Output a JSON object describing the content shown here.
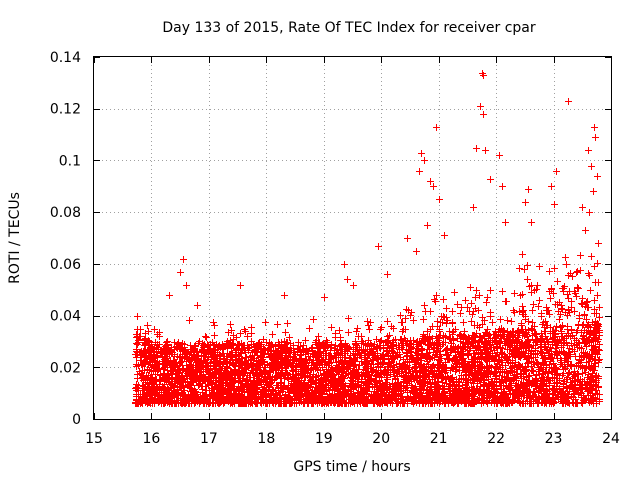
{
  "chart_data": {
    "type": "scatter",
    "title": "Day 133 of 2015, Rate Of TEC Index for receiver cpar",
    "xlabel": "GPS time / hours",
    "ylabel": "ROTI / TECUs",
    "xlim": [
      15,
      24
    ],
    "ylim": [
      0,
      0.14
    ],
    "xticks": [
      "15",
      "16",
      "17",
      "18",
      "19",
      "20",
      "21",
      "22",
      "23",
      "24"
    ],
    "yticks": [
      "0",
      "0.02",
      "0.04",
      "0.06",
      "0.08",
      "0.1",
      "0.12",
      "0.14"
    ],
    "grid": true,
    "marker": "+",
    "color": "#ff0000",
    "x_start": 15.72,
    "x_end": 23.8,
    "baseline_band": [
      0.006,
      0.03
    ],
    "point_count": 5200,
    "notable_points": [
      {
        "x": 15.75,
        "y": 0.04
      },
      {
        "x": 15.8,
        "y": 0.035
      },
      {
        "x": 16.3,
        "y": 0.048
      },
      {
        "x": 16.55,
        "y": 0.062
      },
      {
        "x": 16.5,
        "y": 0.057
      },
      {
        "x": 16.6,
        "y": 0.052
      },
      {
        "x": 16.8,
        "y": 0.044
      },
      {
        "x": 17.55,
        "y": 0.052
      },
      {
        "x": 18.3,
        "y": 0.048
      },
      {
        "x": 19.0,
        "y": 0.047
      },
      {
        "x": 19.35,
        "y": 0.06
      },
      {
        "x": 19.4,
        "y": 0.054
      },
      {
        "x": 19.5,
        "y": 0.052
      },
      {
        "x": 19.95,
        "y": 0.067
      },
      {
        "x": 20.1,
        "y": 0.056
      },
      {
        "x": 20.45,
        "y": 0.07
      },
      {
        "x": 20.6,
        "y": 0.065
      },
      {
        "x": 20.7,
        "y": 0.103
      },
      {
        "x": 20.75,
        "y": 0.1
      },
      {
        "x": 20.65,
        "y": 0.096
      },
      {
        "x": 20.85,
        "y": 0.092
      },
      {
        "x": 20.9,
        "y": 0.09
      },
      {
        "x": 20.95,
        "y": 0.113
      },
      {
        "x": 21.0,
        "y": 0.085
      },
      {
        "x": 20.8,
        "y": 0.075
      },
      {
        "x": 21.1,
        "y": 0.071
      },
      {
        "x": 21.65,
        "y": 0.105
      },
      {
        "x": 21.75,
        "y": 0.134
      },
      {
        "x": 21.78,
        "y": 0.133
      },
      {
        "x": 21.72,
        "y": 0.121
      },
      {
        "x": 21.78,
        "y": 0.118
      },
      {
        "x": 21.8,
        "y": 0.104
      },
      {
        "x": 21.9,
        "y": 0.093
      },
      {
        "x": 22.05,
        "y": 0.102
      },
      {
        "x": 22.1,
        "y": 0.09
      },
      {
        "x": 21.6,
        "y": 0.082
      },
      {
        "x": 22.15,
        "y": 0.076
      },
      {
        "x": 22.5,
        "y": 0.084
      },
      {
        "x": 22.55,
        "y": 0.089
      },
      {
        "x": 22.6,
        "y": 0.076
      },
      {
        "x": 22.45,
        "y": 0.064
      },
      {
        "x": 22.95,
        "y": 0.09
      },
      {
        "x": 23.05,
        "y": 0.096
      },
      {
        "x": 23.0,
        "y": 0.083
      },
      {
        "x": 23.25,
        "y": 0.123
      },
      {
        "x": 23.5,
        "y": 0.082
      },
      {
        "x": 23.55,
        "y": 0.073
      },
      {
        "x": 23.6,
        "y": 0.104
      },
      {
        "x": 23.65,
        "y": 0.098
      },
      {
        "x": 23.7,
        "y": 0.113
      },
      {
        "x": 23.72,
        "y": 0.109
      },
      {
        "x": 23.68,
        "y": 0.088
      },
      {
        "x": 23.75,
        "y": 0.094
      },
      {
        "x": 23.78,
        "y": 0.068
      },
      {
        "x": 23.62,
        "y": 0.08
      }
    ]
  }
}
